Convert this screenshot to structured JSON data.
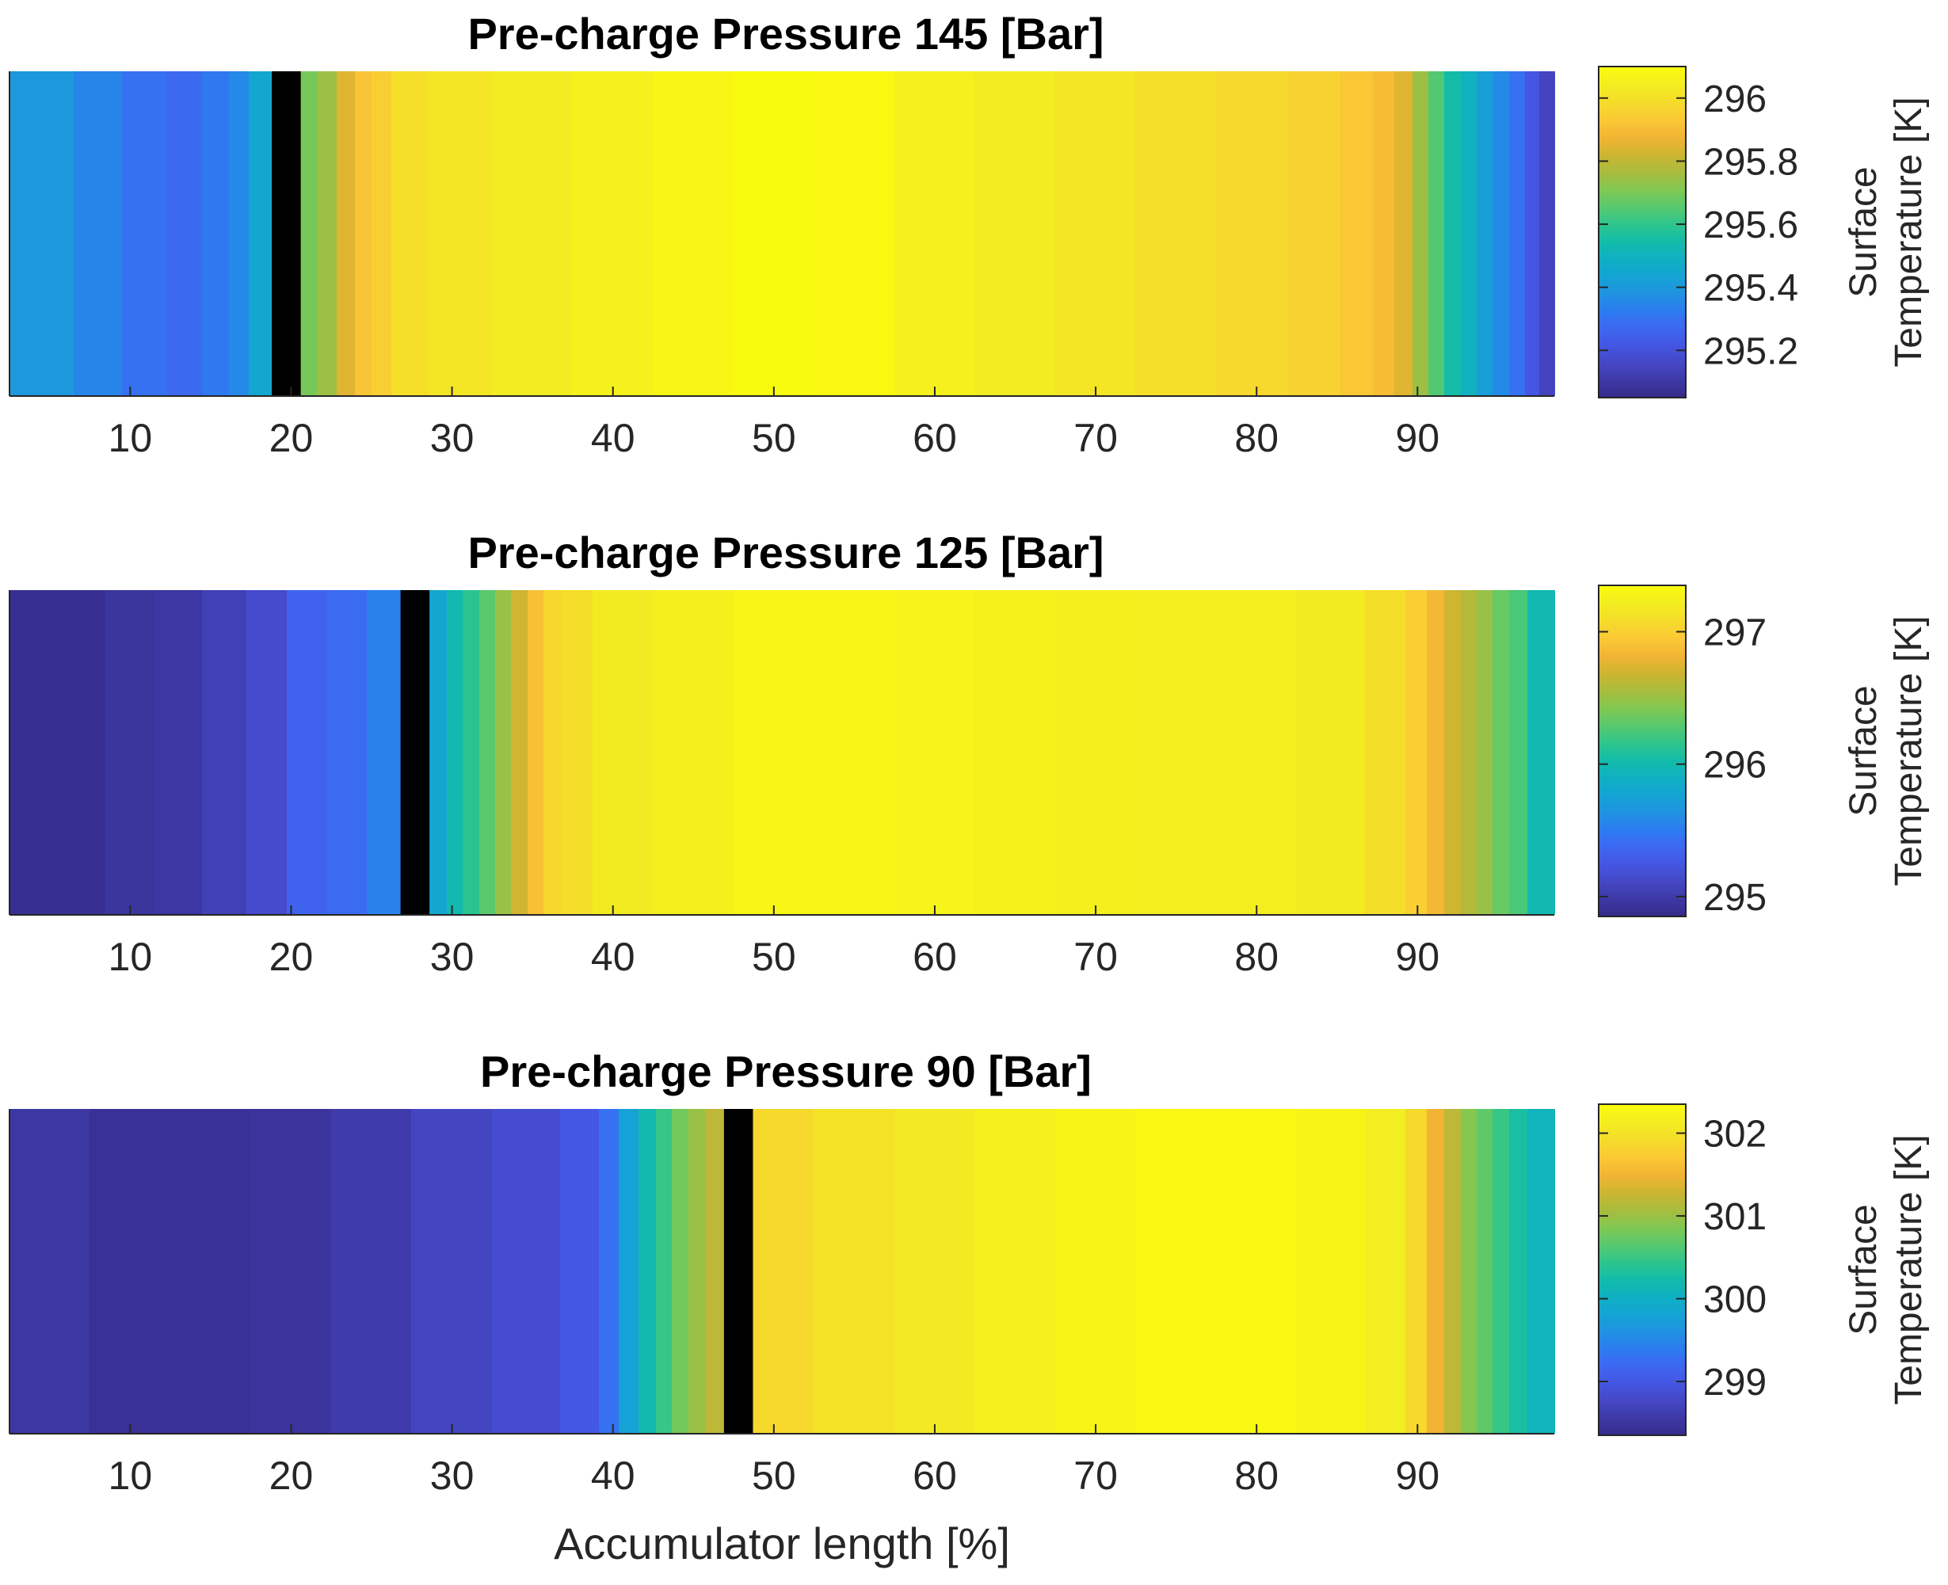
{
  "colors": {
    "parula": [
      "#352a87",
      "#3d38a5",
      "#4547c4",
      "#4455e1",
      "#3e67f1",
      "#2d7bf0",
      "#2092e2",
      "#14a4d4",
      "#0eb0c2",
      "#13bca9",
      "#2ec58d",
      "#58c96e",
      "#82c852",
      "#aabc3d",
      "#cdb531",
      "#f2b434",
      "#fbc935",
      "#f5dc2a",
      "#f3ed21",
      "#f9fb0e"
    ],
    "marker": "#000000",
    "axis": "#262626",
    "background": "#ffffff"
  },
  "chart_data": [
    {
      "type": "heatmap",
      "title": "Pre-charge Pressure 145 [Bar]",
      "xlabel": "",
      "colorbar_label": [
        "Surface",
        "Temperature [K]"
      ],
      "xlim": [
        2.5,
        98.5
      ],
      "xticks": [
        10,
        20,
        30,
        40,
        50,
        60,
        70,
        80,
        90
      ],
      "xtick_labels": [
        "10",
        "20",
        "30",
        "40",
        "50",
        "60",
        "70",
        "80",
        "90"
      ],
      "clim": [
        295.05,
        296.1
      ],
      "cticks": [
        295.2,
        295.4,
        295.6,
        295.8,
        296.0
      ],
      "ctick_labels": [
        "295.2",
        "295.4",
        "295.6",
        "295.8",
        "296"
      ],
      "marker_position": [
        18.8,
        20.6
      ],
      "x": [
        5,
        8,
        11,
        13.5,
        15.5,
        16.8,
        18,
        21.2,
        22.2,
        23.5,
        24.5,
        25.5,
        27,
        30,
        35,
        40,
        45,
        50,
        55,
        60,
        65,
        70,
        75,
        80,
        84,
        86.5,
        88,
        89.2,
        90.2,
        91.2,
        92.2,
        93.2,
        94.2,
        95.2,
        96.2,
        97.2,
        98
      ],
      "surface_temperature_K": [
        295.4,
        295.35,
        295.3,
        295.28,
        295.32,
        295.36,
        295.45,
        295.7,
        295.75,
        295.85,
        295.92,
        295.95,
        296.0,
        296.02,
        296.04,
        296.06,
        296.08,
        296.1,
        296.09,
        296.06,
        296.04,
        296.02,
        296.0,
        295.98,
        295.96,
        295.93,
        295.9,
        295.85,
        295.75,
        295.65,
        295.55,
        295.5,
        295.42,
        295.36,
        295.3,
        295.22,
        295.15
      ]
    },
    {
      "type": "heatmap",
      "title": "Pre-charge Pressure 125 [Bar]",
      "xlabel": "",
      "colorbar_label": [
        "Surface",
        "Temperature [K]"
      ],
      "xlim": [
        2.5,
        98.5
      ],
      "xticks": [
        10,
        20,
        30,
        40,
        50,
        60,
        70,
        80,
        90
      ],
      "xtick_labels": [
        "10",
        "20",
        "30",
        "40",
        "50",
        "60",
        "70",
        "80",
        "90"
      ],
      "clim": [
        294.85,
        297.35
      ],
      "cticks": [
        295,
        296,
        297
      ],
      "ctick_labels": [
        "295",
        "296",
        "297"
      ],
      "marker_position": [
        26.8,
        28.6
      ],
      "x": [
        4,
        7,
        10,
        13,
        16,
        18.5,
        21,
        23.5,
        26,
        29.2,
        30.2,
        31.2,
        32.2,
        33.2,
        34.2,
        35.2,
        36.2,
        37.5,
        40,
        45,
        50,
        55,
        60,
        65,
        70,
        75,
        80,
        85,
        88.5,
        90,
        91.2,
        92.2,
        93.2,
        94.2,
        95.2,
        96.2,
        97.5
      ],
      "surface_temperature_K": [
        294.9,
        294.9,
        294.95,
        294.97,
        295.05,
        295.15,
        295.35,
        295.4,
        295.55,
        295.8,
        296.0,
        296.15,
        296.3,
        296.5,
        296.7,
        296.9,
        297.05,
        297.1,
        297.2,
        297.25,
        297.3,
        297.3,
        297.28,
        297.26,
        297.25,
        297.24,
        297.23,
        297.2,
        297.1,
        297.0,
        296.85,
        296.7,
        296.6,
        296.5,
        296.35,
        296.25,
        296.0
      ]
    },
    {
      "type": "heatmap",
      "title": "Pre-charge Pressure 90 [Bar]",
      "xlabel": "Accumulator length [%]",
      "colorbar_label": [
        "Surface",
        "Temperature [K]"
      ],
      "xlim": [
        2.5,
        98.5
      ],
      "xticks": [
        10,
        20,
        30,
        40,
        50,
        60,
        70,
        80,
        90
      ],
      "xtick_labels": [
        "10",
        "20",
        "30",
        "40",
        "50",
        "60",
        "70",
        "80",
        "90"
      ],
      "clim": [
        298.35,
        302.35
      ],
      "cticks": [
        299,
        300,
        301,
        302
      ],
      "ctick_labels": [
        "299",
        "300",
        "301",
        "302"
      ],
      "marker_position": [
        46.9,
        48.7
      ],
      "x": [
        5,
        10,
        15,
        20,
        25,
        30,
        35,
        38.5,
        39.8,
        41,
        42.2,
        43.2,
        44.2,
        45.2,
        46.3,
        50,
        55,
        60,
        65,
        70,
        75,
        80,
        85,
        88.5,
        90,
        91.2,
        92.2,
        93.2,
        94.2,
        95.2,
        96.2,
        97.5
      ],
      "surface_temperature_K": [
        298.55,
        298.45,
        298.45,
        298.5,
        298.6,
        298.75,
        298.85,
        299.0,
        299.3,
        299.8,
        300.2,
        300.5,
        300.8,
        301.0,
        301.2,
        301.9,
        302.0,
        302.1,
        302.2,
        302.25,
        302.3,
        302.3,
        302.25,
        302.15,
        301.9,
        301.5,
        301.2,
        300.9,
        300.7,
        300.5,
        300.3,
        300.1
      ]
    }
  ]
}
